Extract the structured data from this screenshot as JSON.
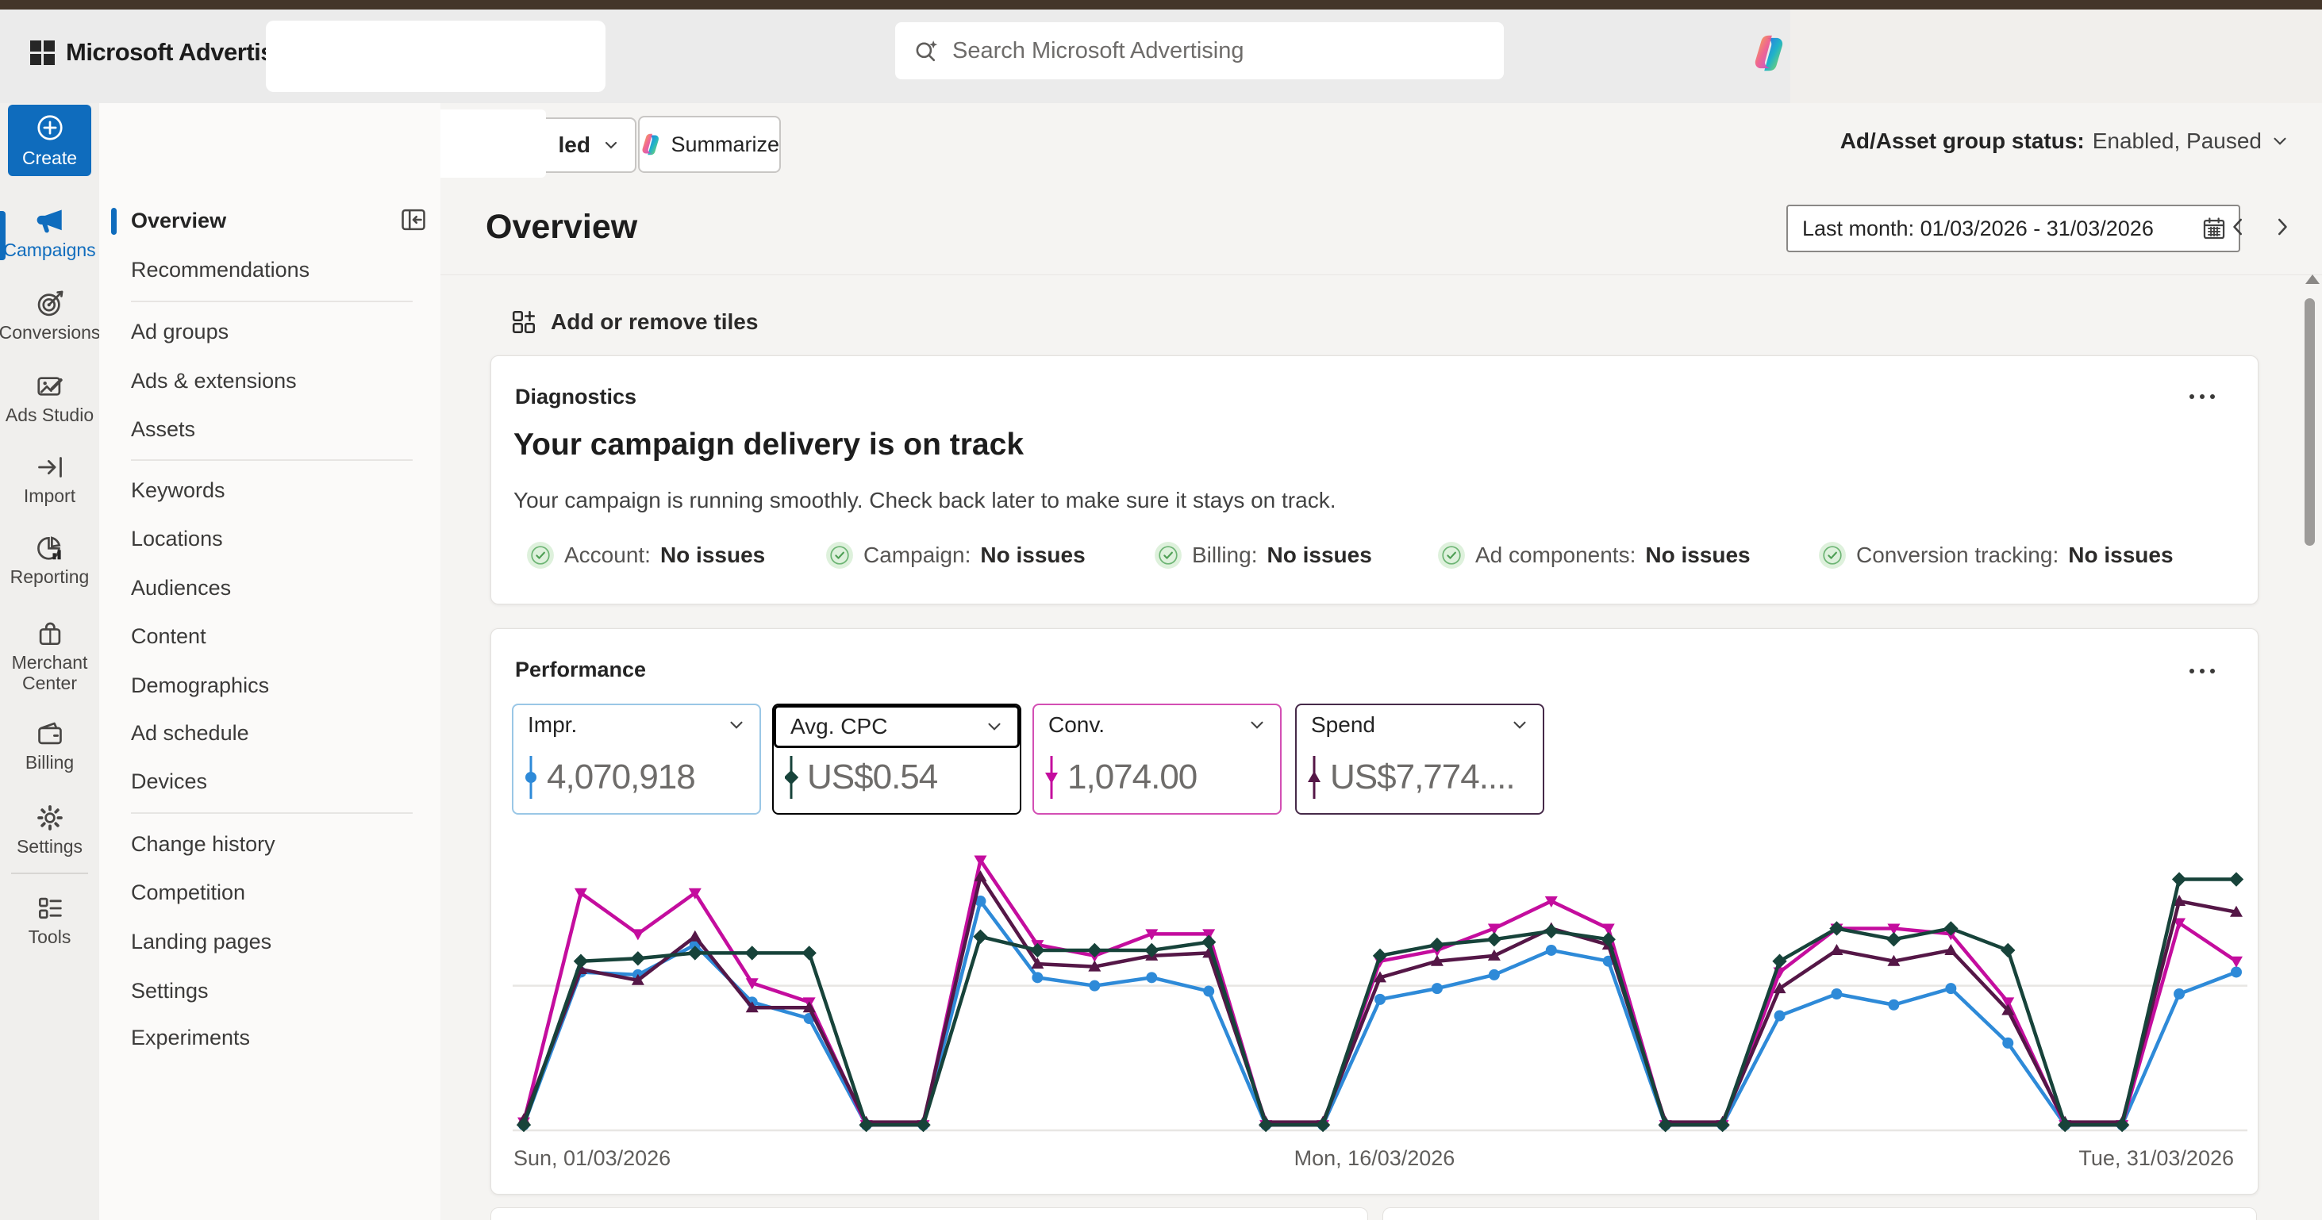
{
  "header": {
    "brand": "Microsoft Advertising",
    "search_placeholder": "Search Microsoft Advertising"
  },
  "toolbar": {
    "filter_partial_label": "led",
    "summarize_label": "Summarize",
    "status_label": "Ad/Asset group status:",
    "status_value": "Enabled, Paused"
  },
  "rail": {
    "create_label": "Create",
    "items": [
      {
        "label": "Campaigns",
        "active": true
      },
      {
        "label": "Conversions",
        "active": false
      },
      {
        "label": "Ads Studio",
        "active": false
      },
      {
        "label": "Import",
        "active": false
      },
      {
        "label": "Reporting",
        "active": false
      },
      {
        "label": "Merchant Center",
        "active": false
      },
      {
        "label": "Billing",
        "active": false
      },
      {
        "label": "Settings",
        "active": false
      },
      {
        "label": "Tools",
        "active": false
      }
    ]
  },
  "sidebar": {
    "active": "Overview",
    "items": [
      "Overview",
      "Recommendations",
      "Ad groups",
      "Ads & extensions",
      "Assets",
      "Keywords",
      "Locations",
      "Audiences",
      "Content",
      "Demographics",
      "Ad schedule",
      "Devices",
      "Change history",
      "Competition",
      "Landing pages",
      "Settings",
      "Experiments"
    ]
  },
  "main": {
    "title": "Overview",
    "date_range": "Last month: 01/03/2026 - 31/03/2026",
    "add_tiles_label": "Add or remove tiles",
    "diagnostics": {
      "title": "Diagnostics",
      "headline": "Your campaign delivery is on track",
      "body": "Your campaign is running smoothly. Check back later to make sure it stays on track.",
      "checks": [
        {
          "label": "Account:",
          "value": "No issues"
        },
        {
          "label": "Campaign:",
          "value": "No issues"
        },
        {
          "label": "Billing:",
          "value": "No issues"
        },
        {
          "label": "Ad components:",
          "value": "No issues"
        },
        {
          "label": "Conversion tracking:",
          "value": "No issues"
        }
      ]
    },
    "performance": {
      "title": "Performance",
      "metrics": [
        {
          "label": "Impr.",
          "value": "4,070,918",
          "accent": "#2e8ad8",
          "border": "#9ac7e6",
          "marker": "circle",
          "selected": false
        },
        {
          "label": "Avg. CPC",
          "value": "US$0.54",
          "accent": "#17433a",
          "border": "#000000",
          "marker": "diamond",
          "selected": true
        },
        {
          "label": "Conv.",
          "value": "1,074.00",
          "accent": "#c40d9e",
          "border": "#d34fb4",
          "marker": "triangle-down",
          "selected": false
        },
        {
          "label": "Spend",
          "value": "US$7,774....",
          "accent": "#551747",
          "border": "#462a49",
          "marker": "triangle-up",
          "selected": false
        }
      ]
    }
  },
  "chart_data": {
    "type": "line",
    "title": "Performance",
    "x_labels": [
      "Sun, 01/03/2026",
      "Mon, 16/03/2026",
      "Tue, 31/03/2026"
    ],
    "x": [
      1,
      2,
      3,
      4,
      5,
      6,
      7,
      8,
      9,
      10,
      11,
      12,
      13,
      14,
      15,
      16,
      17,
      18,
      19,
      20,
      21,
      22,
      23,
      24,
      25,
      26,
      27,
      28,
      29,
      30,
      31
    ],
    "ylim": [
      0,
      100
    ],
    "gridlines_at": [
      0,
      53
    ],
    "legend_position": "none",
    "series": [
      {
        "name": "Impr.",
        "color": "#2e8ad8",
        "marker": "circle",
        "values": [
          2,
          58,
          57,
          68,
          47,
          41,
          2,
          2,
          84,
          56,
          53,
          56,
          51,
          2,
          2,
          48,
          52,
          57,
          66,
          62,
          2,
          2,
          42,
          50,
          46,
          52,
          32,
          2,
          2,
          50,
          58
        ]
      },
      {
        "name": "Avg. CPC",
        "color": "#17433a",
        "marker": "diamond",
        "values": [
          2,
          62,
          63,
          65,
          65,
          65,
          2,
          2,
          71,
          66,
          66,
          66,
          69,
          2,
          2,
          64,
          68,
          70,
          73,
          70,
          2,
          2,
          62,
          74,
          70,
          74,
          66,
          2,
          2,
          92,
          92
        ]
      },
      {
        "name": "Conv.",
        "color": "#c40d9e",
        "marker": "triangle-down",
        "values": [
          3,
          87,
          72,
          87,
          54,
          47,
          2,
          2,
          99,
          68,
          64,
          72,
          72,
          2,
          2,
          62,
          66,
          74,
          84,
          74,
          2,
          2,
          58,
          74,
          74,
          72,
          47,
          2,
          2,
          76,
          62
        ]
      },
      {
        "name": "Spend",
        "color": "#551747",
        "marker": "triangle-up",
        "values": [
          4,
          59,
          55,
          71,
          45,
          45,
          3,
          3,
          93,
          61,
          60,
          64,
          65,
          3,
          3,
          56,
          62,
          64,
          74,
          68,
          3,
          3,
          52,
          66,
          62,
          66,
          44,
          3,
          3,
          84,
          80
        ]
      }
    ]
  }
}
